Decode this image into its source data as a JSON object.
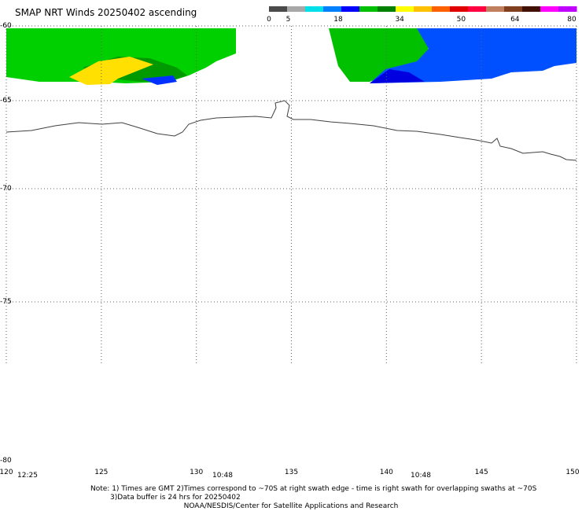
{
  "title": "SMAP NRT Winds 20250402 ascending",
  "colorbar": {
    "colors": [
      "#4a4a4a",
      "#a8a8a8",
      "#00e0e8",
      "#0080ff",
      "#0000ff",
      "#00c000",
      "#008000",
      "#ffff00",
      "#ffc000",
      "#ff6000",
      "#e00000",
      "#ff0040",
      "#c08060",
      "#804020",
      "#401000",
      "#ff00ff",
      "#c000ff"
    ],
    "tick_labels": [
      "0",
      "5",
      "18",
      "34",
      "50",
      "64",
      "80"
    ]
  },
  "latitude_labels": [
    "-60",
    "-65",
    "-70",
    "-75",
    "-80"
  ],
  "longitude_labels": [
    "120",
    "125",
    "130",
    "135",
    "140",
    "145",
    "150"
  ],
  "swath_times": [
    "12:25",
    "10:48",
    "10:48"
  ],
  "note": {
    "line1": "Note: 1) Times are GMT 2)Times correspond to ~70S at right swath edge - time is right swath for overlapping swaths at ~70S",
    "line2": "3)Data buffer is 24 hrs for 20250402",
    "line3": "NOAA/NESDIS/Center for Satellite Applications and Research"
  },
  "map": {
    "lat_range": [
      -80,
      -60
    ],
    "lon_range": [
      120,
      150
    ],
    "land_color": "#ffffff",
    "coastline_color": "#404040",
    "wind_colors": {
      "light": "#0000ff",
      "moderate": "#00c000",
      "strong": "#ffff00"
    }
  }
}
